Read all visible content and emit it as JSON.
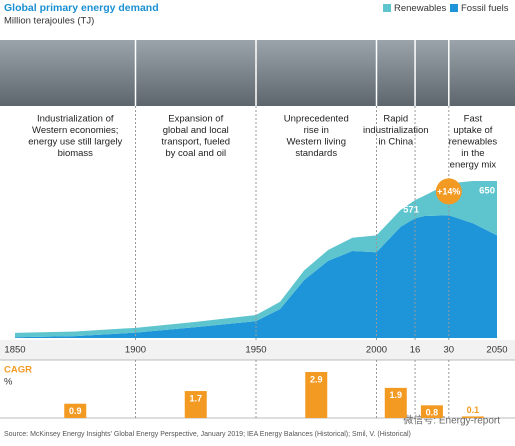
{
  "chart_data": {
    "type": "area",
    "title": "Global primary energy demand",
    "subtitle": "Million terajoules (TJ)",
    "x": [
      1850,
      1875,
      1900,
      1925,
      1950,
      1960,
      1970,
      1980,
      1990,
      2000,
      2010,
      2016,
      2020,
      2030,
      2040,
      2050
    ],
    "xlim": [
      1850,
      2050
    ],
    "xticks": [
      1850,
      1900,
      1950,
      2000,
      {
        "value": 2016,
        "label": "16"
      },
      {
        "value": 2030,
        "label": "30"
      },
      2050
    ],
    "series": [
      {
        "name": "Fossil fuels",
        "color": "#1e95d8",
        "values": [
          3,
          8,
          22,
          45,
          70,
          120,
          240,
          320,
          360,
          355,
          460,
          496,
          505,
          508,
          475,
          425
        ]
      },
      {
        "name": "Renewables",
        "color": "#5ec5cf",
        "values": [
          18,
          19,
          20,
          22,
          25,
          30,
          40,
          45,
          55,
          70,
          70,
          75,
          85,
          132,
          175,
          225
        ]
      }
    ],
    "total_labels": [
      {
        "x": 2016,
        "value": 571
      },
      {
        "x": 2050,
        "value": 650
      }
    ],
    "annotation": {
      "text": "+14%",
      "x": 2030
    },
    "era_labels": [
      [
        "Industrialization of",
        "Western economies;",
        "energy use still largely",
        "biomass"
      ],
      [
        "Expansion of",
        "global and local",
        "transport, fueled",
        "by coal and oil"
      ],
      [
        "Unprecedented",
        "rise in",
        "Western living",
        "standards"
      ],
      [
        "Rapid",
        "industrialization",
        "in China"
      ],
      null,
      [
        "Fast",
        "uptake of",
        "renewables",
        "in the",
        "energy mix"
      ]
    ],
    "cagr_title": "CAGR",
    "cagr_unit": "%",
    "cagr_color": "#f39a23",
    "cagr_values": [
      0.9,
      1.7,
      2.9,
      1.9,
      0.8,
      0.1
    ],
    "source": "Source: McKinsey Energy Insights' Global Energy Perspective, January 2019; IEA Energy Balances (Historical); Smil, V. (Historical)",
    "watermark": "微信号: Energy-report"
  }
}
